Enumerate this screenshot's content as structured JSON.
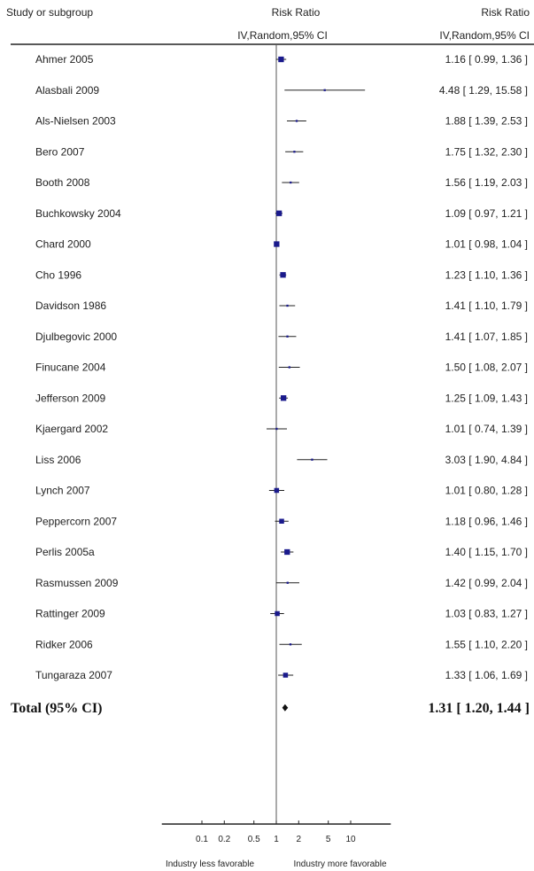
{
  "header": {
    "study_col": "Study or subgroup",
    "rr_col_line1": "Risk Ratio",
    "rr_col_line2": "IV,Random,95% CI",
    "rr_val_line1": "Risk Ratio",
    "rr_val_line2": "IV,Random,95% CI"
  },
  "chart_data": {
    "type": "forest",
    "scale": "log",
    "xlim": [
      0.05,
      20
    ],
    "null_value": 1,
    "xticks": [
      "0.1",
      "0.2",
      "0.5",
      "1",
      "2",
      "5",
      "10"
    ],
    "xtick_values": [
      0.1,
      0.2,
      0.5,
      1,
      2,
      5,
      10
    ],
    "left_footer": "Industry less favorable",
    "right_footer": "Industry more favorable",
    "marker_color": "#1a1a8c",
    "studies": [
      {
        "name": "Ahmer 2005",
        "rr": 1.16,
        "lo": 0.99,
        "hi": 1.36,
        "text": "1.16 [ 0.99, 1.36 ]",
        "weight": 6
      },
      {
        "name": "Alasbali 2009",
        "rr": 4.48,
        "lo": 1.29,
        "hi": 15.58,
        "text": "4.48 [ 1.29, 15.58 ]",
        "weight": 1
      },
      {
        "name": "Als-Nielsen 2003",
        "rr": 1.88,
        "lo": 1.39,
        "hi": 2.53,
        "text": "1.88 [ 1.39, 2.53 ]",
        "weight": 1
      },
      {
        "name": "Bero 2007",
        "rr": 1.75,
        "lo": 1.32,
        "hi": 2.3,
        "text": "1.75 [ 1.32, 2.30 ]",
        "weight": 1
      },
      {
        "name": "Booth 2008",
        "rr": 1.56,
        "lo": 1.19,
        "hi": 2.03,
        "text": "1.56 [ 1.19, 2.03 ]",
        "weight": 1
      },
      {
        "name": "Buchkowsky 2004",
        "rr": 1.09,
        "lo": 0.97,
        "hi": 1.21,
        "text": "1.09 [ 0.97, 1.21 ]",
        "weight": 6
      },
      {
        "name": "Chard 2000",
        "rr": 1.01,
        "lo": 0.98,
        "hi": 1.04,
        "text": "1.01 [ 0.98, 1.04 ]",
        "weight": 6
      },
      {
        "name": "Cho 1996",
        "rr": 1.23,
        "lo": 1.1,
        "hi": 1.36,
        "text": "1.23 [ 1.10, 1.36 ]",
        "weight": 6
      },
      {
        "name": "Davidson 1986",
        "rr": 1.41,
        "lo": 1.1,
        "hi": 1.79,
        "text": "1.41 [ 1.10, 1.79 ]",
        "weight": 1
      },
      {
        "name": "Djulbegovic 2000",
        "rr": 1.41,
        "lo": 1.07,
        "hi": 1.85,
        "text": "1.41 [ 1.07, 1.85 ]",
        "weight": 1
      },
      {
        "name": "Finucane 2004",
        "rr": 1.5,
        "lo": 1.08,
        "hi": 2.07,
        "text": "1.50 [ 1.08, 2.07 ]",
        "weight": 1
      },
      {
        "name": "Jefferson 2009",
        "rr": 1.25,
        "lo": 1.09,
        "hi": 1.43,
        "text": "1.25 [ 1.09, 1.43 ]",
        "weight": 6
      },
      {
        "name": "Kjaergard 2002",
        "rr": 1.01,
        "lo": 0.74,
        "hi": 1.39,
        "text": "1.01 [ 0.74, 1.39 ]",
        "weight": 1
      },
      {
        "name": "Liss 2006",
        "rr": 3.03,
        "lo": 1.9,
        "hi": 4.84,
        "text": "3.03 [ 1.90, 4.84 ]",
        "weight": 1
      },
      {
        "name": "Lynch 2007",
        "rr": 1.01,
        "lo": 0.8,
        "hi": 1.28,
        "text": "1.01 [ 0.80, 1.28 ]",
        "weight": 5
      },
      {
        "name": "Peppercorn 2007",
        "rr": 1.18,
        "lo": 0.96,
        "hi": 1.46,
        "text": "1.18 [ 0.96, 1.46 ]",
        "weight": 5
      },
      {
        "name": "Perlis 2005a",
        "rr": 1.4,
        "lo": 1.15,
        "hi": 1.7,
        "text": "1.40 [ 1.15, 1.70 ]",
        "weight": 6
      },
      {
        "name": "Rasmussen 2009",
        "rr": 1.42,
        "lo": 0.99,
        "hi": 2.04,
        "text": "1.42 [ 0.99, 2.04 ]",
        "weight": 1
      },
      {
        "name": "Rattinger 2009",
        "rr": 1.03,
        "lo": 0.83,
        "hi": 1.27,
        "text": "1.03 [ 0.83, 1.27 ]",
        "weight": 5
      },
      {
        "name": "Ridker 2006",
        "rr": 1.55,
        "lo": 1.1,
        "hi": 2.2,
        "text": "1.55 [ 1.10, 2.20 ]",
        "weight": 1
      },
      {
        "name": "Tungaraza 2007",
        "rr": 1.33,
        "lo": 1.06,
        "hi": 1.69,
        "text": "1.33 [ 1.06, 1.69 ]",
        "weight": 5
      }
    ],
    "total": {
      "name": "Total (95% CI)",
      "rr": 1.31,
      "lo": 1.2,
      "hi": 1.44,
      "text": "1.31 [ 1.20, 1.44 ]"
    }
  }
}
